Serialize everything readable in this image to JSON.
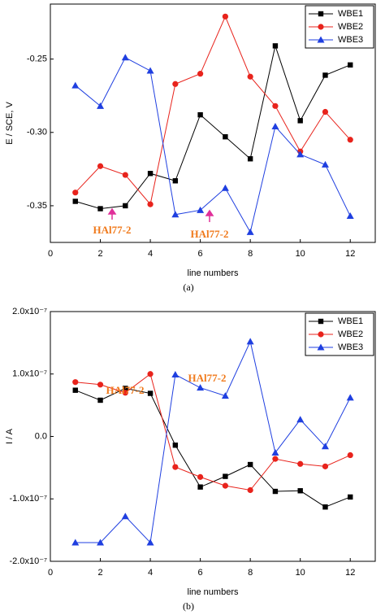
{
  "chart_data": [
    {
      "type": "line",
      "xlabel": "line numbers",
      "ylabel": "E / SCE, V",
      "caption": "(a)",
      "x": [
        1,
        2,
        3,
        4,
        5,
        6,
        7,
        8,
        9,
        10,
        11,
        12
      ],
      "xlim": [
        0,
        13
      ],
      "xticks": [
        0,
        2,
        4,
        6,
        8,
        10,
        12
      ],
      "ylim": [
        -0.375,
        -0.2125
      ],
      "yticks": [
        -0.35,
        {
          "value": -0.3,
          "label": "-0.30"
        },
        -0.25
      ],
      "legend": "upper right",
      "series": [
        {
          "name": "WBE1",
          "color": "#000000",
          "marker": "square",
          "values": [
            -0.347,
            -0.352,
            -0.35,
            -0.328,
            -0.333,
            -0.288,
            -0.303,
            -0.318,
            -0.241,
            -0.292,
            -0.261,
            -0.254
          ]
        },
        {
          "name": "WBE2",
          "color": "#e8231c",
          "marker": "circle",
          "values": [
            -0.341,
            -0.323,
            -0.329,
            -0.349,
            -0.267,
            -0.26,
            -0.221,
            -0.262,
            -0.282,
            -0.313,
            -0.286,
            -0.305
          ]
        },
        {
          "name": "WBE3",
          "color": "#1f3fe0",
          "marker": "triangle",
          "values": [
            -0.268,
            -0.282,
            -0.249,
            -0.258,
            -0.356,
            -0.353,
            -0.338,
            -0.368,
            -0.296,
            -0.315,
            -0.322,
            -0.357
          ]
        }
      ],
      "annotations": [
        "HAl77-2",
        "HAl77-2"
      ]
    },
    {
      "type": "line",
      "xlabel": "line numbers",
      "ylabel": "I / A",
      "caption": "(b)",
      "x": [
        1,
        2,
        3,
        4,
        5,
        6,
        7,
        8,
        9,
        10,
        11,
        12
      ],
      "xlim": [
        0,
        13
      ],
      "xticks": [
        0,
        2,
        4,
        6,
        8,
        10,
        12
      ],
      "ylim": [
        -2e-07,
        2e-07
      ],
      "yticks": [
        {
          "value": -2e-07,
          "label": "-2.0x10⁻⁷"
        },
        {
          "value": -1e-07,
          "label": "-1.0x10⁻⁷"
        },
        {
          "value": 0,
          "label": "0.0"
        },
        {
          "value": 1e-07,
          "label": "1.0x10⁻⁷"
        },
        {
          "value": 2e-07,
          "label": "2.0x10⁻⁷"
        }
      ],
      "legend": "upper right",
      "series": [
        {
          "name": "WBE1",
          "color": "#000000",
          "marker": "square",
          "values": [
            7.4e-08,
            5.8e-08,
            7.7e-08,
            6.9e-08,
            -1.4e-08,
            -8.1e-08,
            -6.4e-08,
            -4.5e-08,
            -8.8e-08,
            -8.7e-08,
            -1.13e-07,
            -9.7e-08
          ]
        },
        {
          "name": "WBE2",
          "color": "#e8231c",
          "marker": "circle",
          "values": [
            8.7e-08,
            8.3e-08,
            7e-08,
            1e-07,
            -4.9e-08,
            -6.5e-08,
            -7.9e-08,
            -8.6e-08,
            -3.6e-08,
            -4.4e-08,
            -4.8e-08,
            -3e-08
          ]
        },
        {
          "name": "WBE3",
          "color": "#1f3fe0",
          "marker": "triangle",
          "values": [
            -1.7e-07,
            -1.7e-07,
            -1.28e-07,
            -1.7e-07,
            9.9e-08,
            7.8e-08,
            6.5e-08,
            1.52e-07,
            -2.6e-08,
            2.7e-08,
            -1.6e-08,
            6.2e-08
          ]
        }
      ],
      "annotations": [
        "HAl77-2",
        "HAl77-2"
      ]
    }
  ]
}
